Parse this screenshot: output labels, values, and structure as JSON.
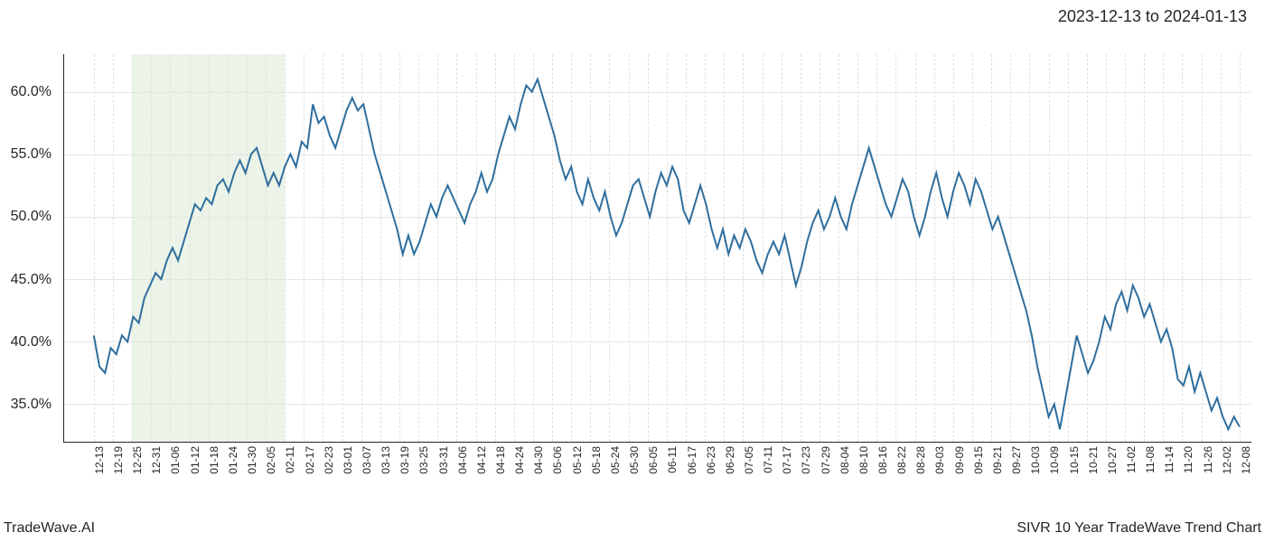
{
  "date_range": "2023-12-13 to 2024-01-13",
  "footer_left": "TradeWave.AI",
  "footer_right": "SIVR 10 Year TradeWave Trend Chart",
  "chart": {
    "type": "line",
    "background_color": "#ffffff",
    "grid_h_color": "#e6e6e6",
    "grid_v_color": "#e0e0e0",
    "grid_v_style": "dashed",
    "axis_color": "#262626",
    "highlight_band": {
      "start_index": 2,
      "end_index": 10,
      "fill": "#d9e9d3",
      "opacity": 0.5
    },
    "line": {
      "color": "#2e6e9e",
      "width": 2
    },
    "y": {
      "min": 32,
      "max": 63,
      "ticks": [
        35,
        40,
        45,
        50,
        55,
        60
      ],
      "tick_suffix": ".0%",
      "label_fontsize": 16
    },
    "x": {
      "labels": [
        "12-13",
        "12-19",
        "12-25",
        "12-31",
        "01-06",
        "01-12",
        "01-18",
        "01-24",
        "01-30",
        "02-05",
        "02-11",
        "02-17",
        "02-23",
        "03-01",
        "03-07",
        "03-13",
        "03-19",
        "03-25",
        "03-31",
        "04-06",
        "04-12",
        "04-18",
        "04-24",
        "04-30",
        "05-06",
        "05-12",
        "05-18",
        "05-24",
        "05-30",
        "06-05",
        "06-11",
        "06-17",
        "06-23",
        "06-29",
        "07-05",
        "07-11",
        "07-17",
        "07-23",
        "07-29",
        "08-04",
        "08-10",
        "08-16",
        "08-22",
        "08-28",
        "09-03",
        "09-09",
        "09-15",
        "09-21",
        "09-27",
        "10-03",
        "10-09",
        "10-15",
        "10-21",
        "10-27",
        "11-02",
        "11-08",
        "11-14",
        "11-20",
        "11-26",
        "12-02",
        "12-08"
      ],
      "label_fontsize": 12,
      "label_rotation": -90
    },
    "series": [
      40.5,
      38.0,
      37.5,
      39.5,
      39.0,
      40.5,
      40.0,
      42.0,
      41.5,
      43.5,
      44.5,
      45.5,
      45.0,
      46.5,
      47.5,
      46.5,
      48.0,
      49.5,
      51.0,
      50.5,
      51.5,
      51.0,
      52.5,
      53.0,
      52.0,
      53.5,
      54.5,
      53.5,
      55.0,
      55.5,
      54.0,
      52.5,
      53.5,
      52.5,
      54.0,
      55.0,
      54.0,
      56.0,
      55.5,
      59.0,
      57.5,
      58.0,
      56.5,
      55.5,
      57.0,
      58.5,
      59.5,
      58.5,
      59.0,
      57.0,
      55.0,
      53.5,
      52.0,
      50.5,
      49.0,
      47.0,
      48.5,
      47.0,
      48.0,
      49.5,
      51.0,
      50.0,
      51.5,
      52.5,
      51.5,
      50.5,
      49.5,
      51.0,
      52.0,
      53.5,
      52.0,
      53.0,
      55.0,
      56.5,
      58.0,
      57.0,
      59.0,
      60.5,
      60.0,
      61.0,
      59.5,
      58.0,
      56.5,
      54.5,
      53.0,
      54.0,
      52.0,
      51.0,
      53.0,
      51.5,
      50.5,
      52.0,
      50.0,
      48.5,
      49.5,
      51.0,
      52.5,
      53.0,
      51.5,
      50.0,
      52.0,
      53.5,
      52.5,
      54.0,
      53.0,
      50.5,
      49.5,
      51.0,
      52.5,
      51.0,
      49.0,
      47.5,
      49.0,
      47.0,
      48.5,
      47.5,
      49.0,
      48.0,
      46.5,
      45.5,
      47.0,
      48.0,
      47.0,
      48.5,
      46.5,
      44.5,
      46.0,
      48.0,
      49.5,
      50.5,
      49.0,
      50.0,
      51.5,
      50.0,
      49.0,
      51.0,
      52.5,
      54.0,
      55.5,
      54.0,
      52.5,
      51.0,
      50.0,
      51.5,
      53.0,
      52.0,
      50.0,
      48.5,
      50.0,
      52.0,
      53.5,
      51.5,
      50.0,
      52.0,
      53.5,
      52.5,
      51.0,
      53.0,
      52.0,
      50.5,
      49.0,
      50.0,
      48.5,
      47.0,
      45.5,
      44.0,
      42.5,
      40.5,
      38.0,
      36.0,
      34.0,
      35.0,
      33.0,
      35.5,
      38.0,
      40.5,
      39.0,
      37.5,
      38.5,
      40.0,
      42.0,
      41.0,
      43.0,
      44.0,
      42.5,
      44.5,
      43.5,
      42.0,
      43.0,
      41.5,
      40.0,
      41.0,
      39.5,
      37.0,
      36.5,
      38.0,
      36.0,
      37.5,
      36.0,
      34.5,
      35.5,
      34.0,
      33.0,
      34.0,
      33.2
    ]
  }
}
